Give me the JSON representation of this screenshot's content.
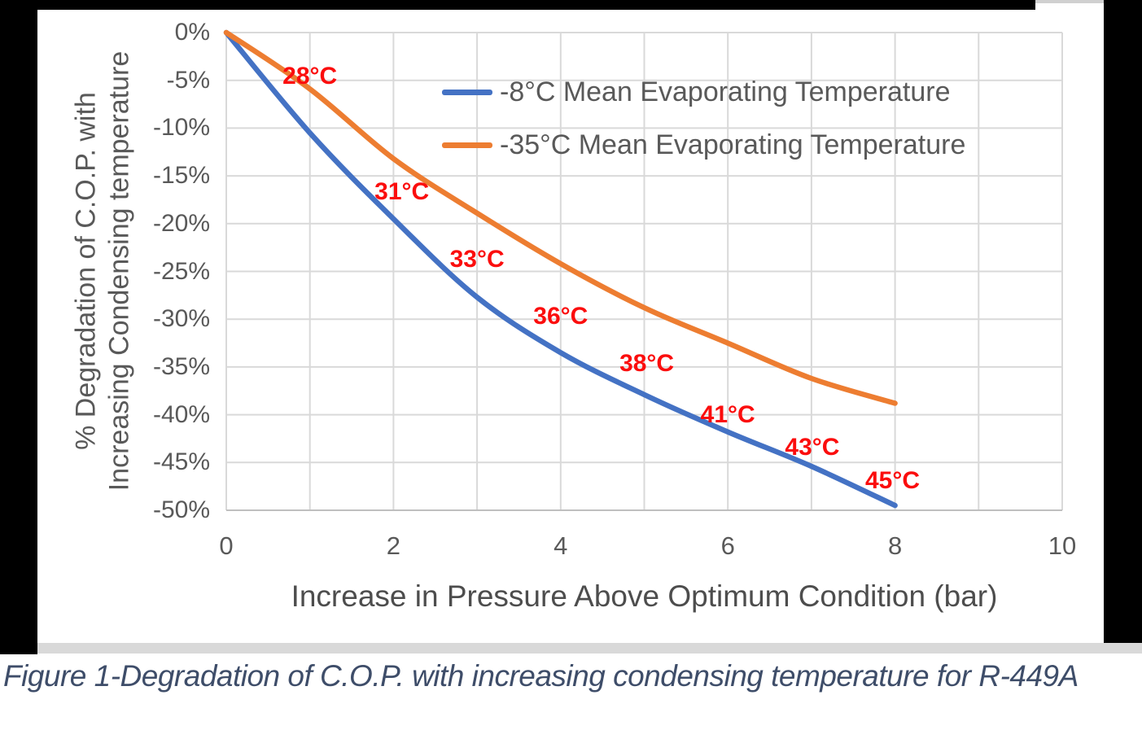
{
  "caption": "Figure 1-Degradation of C.O.P. with increasing condensing temperature for R-449A",
  "colors": {
    "grid": "#d9d9d9",
    "axis_line": "#bfbfbf",
    "tick_text": "#595959",
    "point_label": "#fb0d0d",
    "caption_text": "#3e4d69",
    "surround": "#000000",
    "bottom_band": "#d9d9d9"
  },
  "chart_data": {
    "type": "line",
    "title": "",
    "xlabel": "Increase in Pressure Above Optimum Condition (bar)",
    "ylabel_lines": [
      "% Degradation of C.O.P. with",
      "Increasing Condensing temperature"
    ],
    "xlim": [
      0,
      10
    ],
    "ylim": [
      -50,
      0
    ],
    "grid": true,
    "x_grid_step": 1,
    "y_grid_step": 5,
    "x_ticks": [
      0,
      2,
      4,
      6,
      8,
      10
    ],
    "y_ticks": [
      {
        "value": 0,
        "label": "0%"
      },
      {
        "value": -5,
        "label": "-5%"
      },
      {
        "value": -10,
        "label": "-10%"
      },
      {
        "value": -15,
        "label": "-15%"
      },
      {
        "value": -20,
        "label": "-20%"
      },
      {
        "value": -25,
        "label": "-25%"
      },
      {
        "value": -30,
        "label": "-30%"
      },
      {
        "value": -35,
        "label": "-35%"
      },
      {
        "value": -40,
        "label": "-40%"
      },
      {
        "value": -45,
        "label": "-45%"
      },
      {
        "value": -50,
        "label": "-50%"
      }
    ],
    "x": [
      0,
      1,
      2,
      3,
      4,
      5,
      6,
      7,
      8
    ],
    "series": [
      {
        "name": "-8°C Mean Evaporating Temperature",
        "color": "#4472c4",
        "values": [
          0,
          -10.5,
          -19.5,
          -27.7,
          -33.5,
          -37.9,
          -41.8,
          -45.4,
          -49.5
        ]
      },
      {
        "name": "-35°C Mean Evaporating Temperature",
        "color": "#ed7d31",
        "values": [
          0,
          -5.9,
          -13.2,
          -18.9,
          -24.2,
          -28.8,
          -32.5,
          -36.2,
          -38.8
        ]
      }
    ],
    "point_labels": [
      {
        "text": "28°C",
        "x": 1.0,
        "y": -4.6
      },
      {
        "text": "31°C",
        "x": 2.1,
        "y": -16.7
      },
      {
        "text": "33°C",
        "x": 3.0,
        "y": -23.8
      },
      {
        "text": "36°C",
        "x": 4.0,
        "y": -29.7
      },
      {
        "text": "38°C",
        "x": 5.03,
        "y": -34.7
      },
      {
        "text": "41°C",
        "x": 6.0,
        "y": -40.0
      },
      {
        "text": "43°C",
        "x": 7.01,
        "y": -43.4
      },
      {
        "text": "45°C",
        "x": 7.97,
        "y": -46.9
      }
    ],
    "legend_position": "top-right-inside"
  }
}
